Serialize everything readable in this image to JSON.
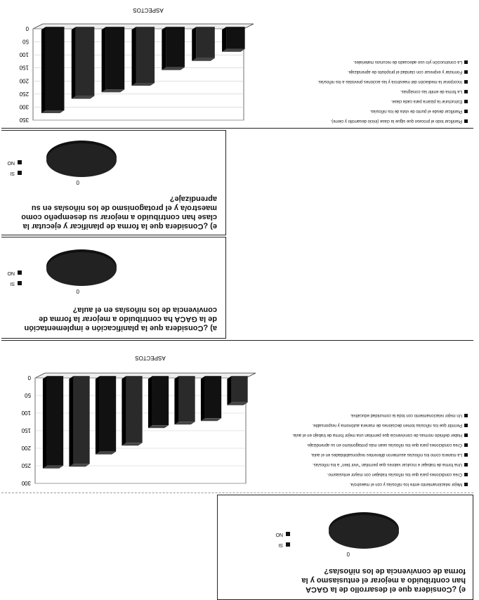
{
  "q1": {
    "title": "e) ¿Considera que el desarrollo de la GACA han contribuido a mejorar el entusiasmo y la forma de convivencia de los niños/as?",
    "pie_label": "0",
    "legend": [
      "SI",
      "NO"
    ]
  },
  "q2": {
    "legend": [
      "Mejor relacionamiento entre los niños/as y con el maestro/a.",
      "Crea condiciones para que los niños/as trabajen con mayor entusiasmo.",
      "Una forma de trabajar e inculcar valores que permitan \"vivir bien\" a los niños/as.",
      "La manera como los niños/as asumieron diferentes responsabilidades en el aula.",
      "Crea condiciones para que los niños/as sean más protagonismo en su aprendizaje.",
      "Haber definido normas de convivencia que permitan una mejor forma de trabajo en el aula.",
      "Permitir que los niños/as tomen decisiones de manera autónoma y responsable.",
      "Un mejor relacionamiento con toda la comunidad educativa."
    ]
  },
  "q3": {
    "title": "a) ¿Considera que la planificación e implementación de la GACA ha contribuido a mejorar la forma de convivencia de los niños/as en el aula?",
    "pie_label": "0",
    "legend": [
      "SI",
      "NO"
    ]
  },
  "q4": {
    "title": "e) ¿Considera que la forma de planificar y ejecutar la clase han contribuido a mejorar su desempeño como maestro/a y el protagonismo de los niños/as en su aprendizaje?",
    "pie_label": "0",
    "legend": [
      "SI",
      "NO"
    ]
  },
  "q5": {
    "legend": [
      "Planificar todo el proceso que sigue la clase (inicio desarrollo y cierre).",
      "Planificar desde el punto de vista de los niños/as.",
      "Estructurar la pizarra para cada clase.",
      "La forma de emitir las consignas.",
      "Incorporar la mediación del maestro/a y las acciones previstas a los niños/as.",
      "Formular y expresar con claridad el propósito de aprendizaje.",
      "La construcción y/o uso adecuado de recursos materiales."
    ]
  },
  "chart_data": [
    {
      "type": "bar",
      "xlabel": "ASPECTOS",
      "ylim": [
        0,
        300
      ],
      "yticks": [
        0,
        50,
        100,
        150,
        200,
        250,
        300
      ],
      "categories": [
        "Mejor relacionamiento entre los niños/as y con el maestro/a.",
        "Crea condiciones para que los niños/as trabajen con mayor entusiasmo.",
        "Una forma de trabajar e inculcar valores que permitan \"vivir bien\" a los niños/as.",
        "La manera como los niños/as asumieron diferentes responsabilidades en el aula.",
        "Crea condiciones para que los niños/as sean más protagonismo en su aprendizaje.",
        "Haber definido normas de convivencia que permitan una mejor forma de trabajo en el aula.",
        "Permitir que los niños/as tomen decisiones de manera autónoma y responsable.",
        "Un mejor relacionamiento con toda la comunidad educativa."
      ],
      "values": [
        255,
        250,
        215,
        190,
        140,
        130,
        120,
        75
      ]
    },
    {
      "type": "bar",
      "xlabel": "ASPECTOS",
      "ylim": [
        0,
        350
      ],
      "yticks": [
        0,
        50,
        100,
        150,
        200,
        250,
        300,
        350
      ],
      "categories": [
        "Planificar todo el proceso que sigue la clase (inicio desarrollo y cierre).",
        "Planificar desde el punto de vista de los niños/as.",
        "Estructurar la pizarra para cada clase.",
        "La forma de emitir las consignas.",
        "Incorporar la mediación del maestro/a y las acciones previstas a los niños/as.",
        "Formular y expresar con claridad el propósito de aprendizaje.",
        "La construcción y/o uso adecuado de recursos materiales."
      ],
      "values": [
        320,
        265,
        240,
        215,
        155,
        120,
        85
      ]
    }
  ]
}
